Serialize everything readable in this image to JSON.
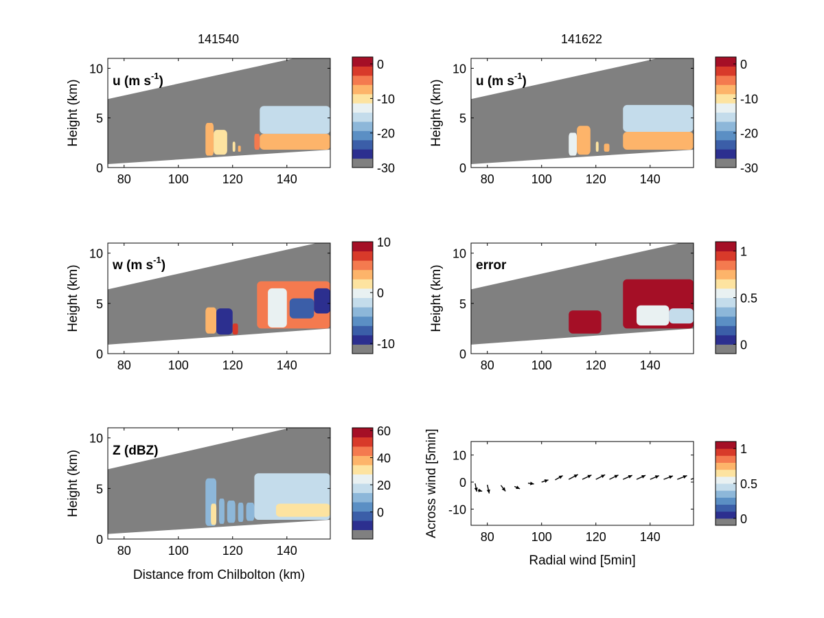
{
  "column_titles": [
    "141540",
    "141622"
  ],
  "colors": {
    "colormap": [
      "#808080",
      "#2c2f8f",
      "#3b5ea8",
      "#5b8fc4",
      "#8db7d9",
      "#c4dceb",
      "#e9f1f2",
      "#fde3a0",
      "#fdb46a",
      "#f47a4f",
      "#d83a2a",
      "#a50f26"
    ],
    "missing": "#808080",
    "frame": "#000000"
  },
  "chart_data": [
    {
      "id": "u-141540",
      "type": "heatmap",
      "column_title": "141540",
      "label_main": "u (m s",
      "label_sup": "-1",
      "label_tail": ")",
      "xlim": [
        74,
        156
      ],
      "ylim": [
        0,
        11
      ],
      "xticks": [
        "80",
        "100",
        "120",
        "140"
      ],
      "yticks": [
        "0",
        "5",
        "10"
      ],
      "ylabel": "Height (km)",
      "xlabel": "",
      "colorbar": {
        "ticks": [
          "0",
          "-10",
          "-20",
          "-30"
        ],
        "range": [
          -30,
          2
        ]
      },
      "echo_blobs": [
        {
          "x": [
            110,
            113
          ],
          "y": [
            1.2,
            4.5
          ],
          "value": -8
        },
        {
          "x": [
            113,
            118
          ],
          "y": [
            1.3,
            3.8
          ],
          "value": -10
        },
        {
          "x": [
            120,
            121
          ],
          "y": [
            1.6,
            2.6
          ],
          "value": -9
        },
        {
          "x": [
            122,
            123
          ],
          "y": [
            1.6,
            2.2
          ],
          "value": -8
        },
        {
          "x": [
            128,
            130
          ],
          "y": [
            1.8,
            3.4
          ],
          "value": -6
        },
        {
          "x": [
            130,
            156
          ],
          "y": [
            1.8,
            3.4
          ],
          "value": -8
        },
        {
          "x": [
            130,
            156
          ],
          "y": [
            3.4,
            6.2
          ],
          "value": -16
        }
      ]
    },
    {
      "id": "u-141622",
      "type": "heatmap",
      "column_title": "141622",
      "label_main": "u (m s",
      "label_sup": "-1",
      "label_tail": ")",
      "xlim": [
        74,
        156
      ],
      "ylim": [
        0,
        11
      ],
      "xticks": [
        "80",
        "100",
        "120",
        "140"
      ],
      "yticks": [
        "0",
        "5",
        "10"
      ],
      "ylabel": "Height (km)",
      "xlabel": "",
      "colorbar": {
        "ticks": [
          "0",
          "-10",
          "-20",
          "-30"
        ],
        "range": [
          -30,
          2
        ]
      },
      "echo_blobs": [
        {
          "x": [
            110,
            113
          ],
          "y": [
            1.2,
            3.5
          ],
          "value": -14
        },
        {
          "x": [
            113,
            118
          ],
          "y": [
            1.3,
            4.2
          ],
          "value": -8
        },
        {
          "x": [
            120,
            121
          ],
          "y": [
            1.6,
            2.6
          ],
          "value": -9
        },
        {
          "x": [
            123,
            125
          ],
          "y": [
            1.6,
            2.4
          ],
          "value": -8
        },
        {
          "x": [
            130,
            156
          ],
          "y": [
            1.8,
            3.6
          ],
          "value": -8
        },
        {
          "x": [
            130,
            156
          ],
          "y": [
            3.6,
            6.3
          ],
          "value": -16
        }
      ]
    },
    {
      "id": "w-141540",
      "type": "heatmap",
      "column_title": "141540",
      "label_main": "w (m s",
      "label_sup": "-1",
      "label_tail": ")",
      "xlim": [
        74,
        156
      ],
      "ylim": [
        0,
        11
      ],
      "xticks": [
        "80",
        "100",
        "120",
        "140"
      ],
      "yticks": [
        "0",
        "5",
        "10"
      ],
      "ylabel": "Height (km)",
      "xlabel": "",
      "colorbar": {
        "ticks": [
          "10",
          "0",
          "-10"
        ],
        "range": [
          -12,
          10
        ]
      },
      "echo_blobs": [
        {
          "x": [
            110,
            114
          ],
          "y": [
            2.0,
            4.6
          ],
          "value": 4
        },
        {
          "x": [
            114,
            120
          ],
          "y": [
            1.9,
            4.5
          ],
          "value": -10
        },
        {
          "x": [
            120,
            122
          ],
          "y": [
            1.9,
            3.0
          ],
          "value": 8
        },
        {
          "x": [
            129,
            156
          ],
          "y": [
            2.5,
            7.2
          ],
          "value": 6
        },
        {
          "x": [
            133,
            140
          ],
          "y": [
            2.6,
            6.5
          ],
          "value": 0
        },
        {
          "x": [
            141,
            150
          ],
          "y": [
            3.5,
            5.5
          ],
          "value": -8
        },
        {
          "x": [
            150,
            156
          ],
          "y": [
            4.0,
            6.5
          ],
          "value": -10
        }
      ]
    },
    {
      "id": "error-141622",
      "type": "heatmap",
      "column_title": "141622",
      "label_main": "error",
      "label_sup": "",
      "label_tail": "",
      "xlim": [
        74,
        156
      ],
      "ylim": [
        0,
        11
      ],
      "xticks": [
        "80",
        "100",
        "120",
        "140"
      ],
      "yticks": [
        "0",
        "5",
        "10"
      ],
      "ylabel": "Height (km)",
      "xlabel": "",
      "colorbar": {
        "ticks": [
          "1",
          "0.5",
          "0"
        ],
        "range": [
          -0.1,
          1.1
        ]
      },
      "echo_blobs": [
        {
          "x": [
            110,
            122
          ],
          "y": [
            2.0,
            4.3
          ],
          "value": 1.0
        },
        {
          "x": [
            130,
            156
          ],
          "y": [
            2.5,
            7.4
          ],
          "value": 1.0
        },
        {
          "x": [
            135,
            147
          ],
          "y": [
            2.8,
            4.8
          ],
          "value": 0.6
        },
        {
          "x": [
            147,
            156
          ],
          "y": [
            3.0,
            4.5
          ],
          "value": 0.45
        }
      ]
    },
    {
      "id": "z-141540",
      "type": "heatmap",
      "column_title": "141540",
      "label_main": "Z (dBZ)",
      "label_sup": "",
      "label_tail": "",
      "xlim": [
        74,
        156
      ],
      "ylim": [
        0,
        11
      ],
      "xticks": [
        "80",
        "100",
        "120",
        "140"
      ],
      "yticks": [
        "0",
        "5",
        "10"
      ],
      "ylabel": "Height (km)",
      "xlabel": "Distance from Chilbolton (km)",
      "colorbar": {
        "ticks": [
          "60",
          "40",
          "20",
          "0"
        ],
        "range": [
          -20,
          62
        ]
      },
      "echo_blobs": [
        {
          "x": [
            110,
            114
          ],
          "y": [
            1.3,
            6.0
          ],
          "value": 10
        },
        {
          "x": [
            112,
            114
          ],
          "y": [
            1.4,
            3.5
          ],
          "value": 30
        },
        {
          "x": [
            115,
            117
          ],
          "y": [
            1.5,
            4.0
          ],
          "value": 12
        },
        {
          "x": [
            118,
            121
          ],
          "y": [
            1.6,
            3.8
          ],
          "value": 8
        },
        {
          "x": [
            122,
            124
          ],
          "y": [
            1.7,
            3.6
          ],
          "value": 12
        },
        {
          "x": [
            125,
            128
          ],
          "y": [
            1.8,
            3.6
          ],
          "value": 10
        },
        {
          "x": [
            128,
            156
          ],
          "y": [
            1.9,
            6.5
          ],
          "value": 16
        },
        {
          "x": [
            136,
            156
          ],
          "y": [
            2.2,
            3.5
          ],
          "value": 28
        }
      ]
    },
    {
      "id": "vectors-141622",
      "type": "scatter",
      "column_title": "141622",
      "label_main": "",
      "label_sup": "",
      "label_tail": "",
      "xlim": [
        74,
        156
      ],
      "ylim": [
        -16,
        15
      ],
      "xticks": [
        "80",
        "100",
        "120",
        "140"
      ],
      "yticks": [
        "-10",
        "0",
        "10"
      ],
      "ylabel": "Across wind [5min]",
      "xlabel": "Radial wind [5min]",
      "colorbar": {
        "ticks": [
          "1",
          "0.5",
          "0"
        ],
        "range": [
          -0.1,
          1.1
        ]
      },
      "vectors": [
        {
          "x": 75.5,
          "y": -0.5,
          "u": 0.6,
          "v": -3.0
        },
        {
          "x": 76.5,
          "y": -3.0,
          "u": 1.6,
          "v": -0.4
        },
        {
          "x": 80,
          "y": -1.0,
          "u": 0.7,
          "v": -3.2
        },
        {
          "x": 85,
          "y": -1.2,
          "u": 1.7,
          "v": -2.2
        },
        {
          "x": 90,
          "y": -1.6,
          "u": 2.0,
          "v": -0.9
        },
        {
          "x": 95,
          "y": -0.4,
          "u": 2.2,
          "v": -0.3
        },
        {
          "x": 100,
          "y": 0.0,
          "u": 2.5,
          "v": 0.8
        },
        {
          "x": 105,
          "y": 0.8,
          "u": 2.8,
          "v": 1.6
        },
        {
          "x": 110,
          "y": 1.0,
          "u": 3.4,
          "v": 1.8
        },
        {
          "x": 115,
          "y": 1.0,
          "u": 3.4,
          "v": 1.6
        },
        {
          "x": 120,
          "y": 1.0,
          "u": 3.4,
          "v": 1.7
        },
        {
          "x": 125,
          "y": 1.0,
          "u": 3.3,
          "v": 1.6
        },
        {
          "x": 130,
          "y": 1.0,
          "u": 3.4,
          "v": 1.5
        },
        {
          "x": 135,
          "y": 1.0,
          "u": 3.3,
          "v": 1.5
        },
        {
          "x": 140,
          "y": 1.0,
          "u": 3.3,
          "v": 1.4
        },
        {
          "x": 145,
          "y": 1.0,
          "u": 3.4,
          "v": 1.3
        },
        {
          "x": 150,
          "y": 1.0,
          "u": 3.6,
          "v": 1.4
        },
        {
          "x": 155,
          "y": 1.0,
          "u": 3.8,
          "v": 1.2
        }
      ]
    }
  ]
}
